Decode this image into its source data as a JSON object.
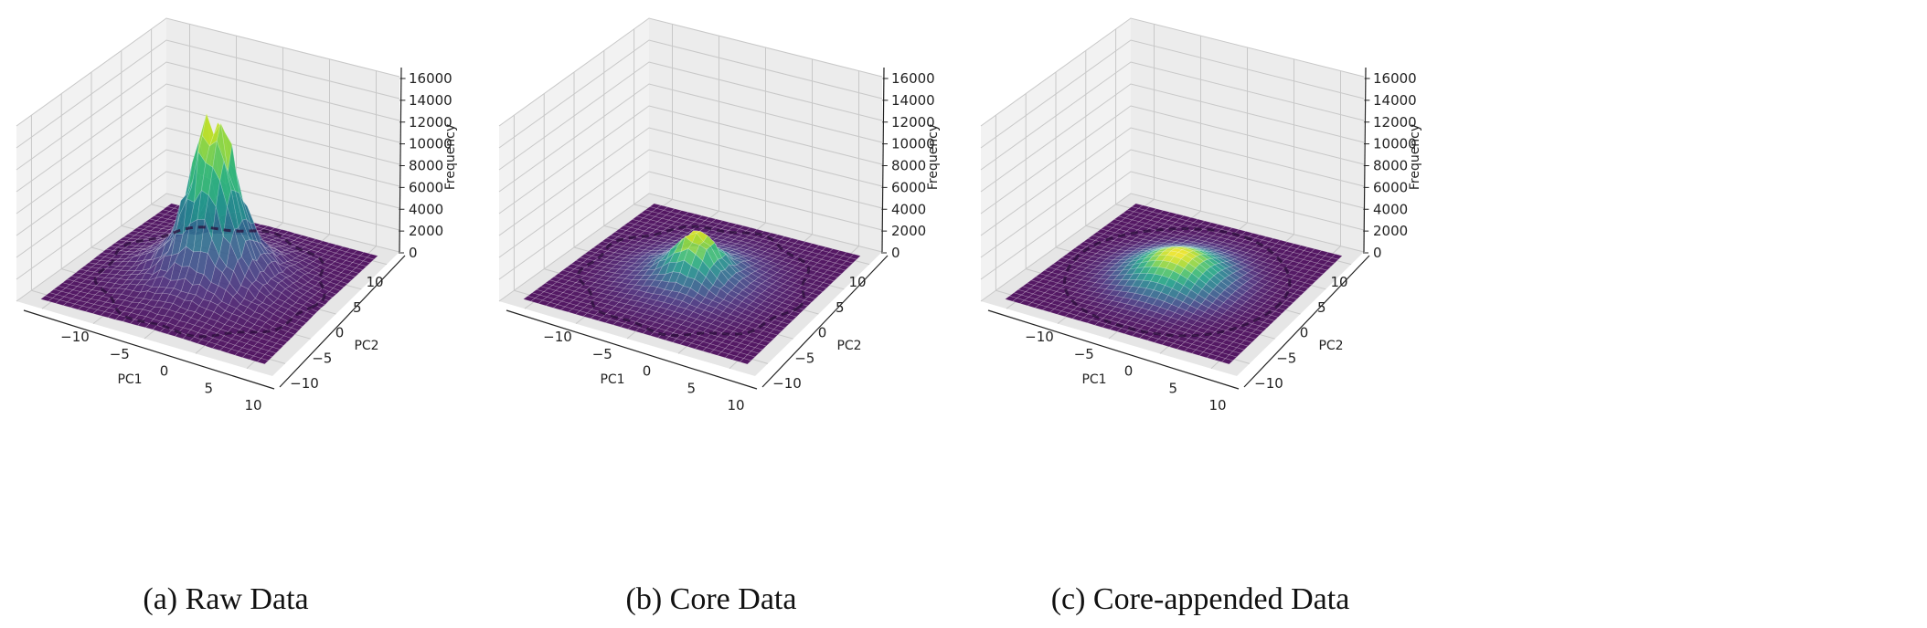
{
  "chart_data": [
    {
      "type": "surface3d",
      "caption": "(a) Raw Data",
      "xlabel": "PC1",
      "ylabel": "PC2",
      "zlabel": "Frequency",
      "xlim": [
        -12.5,
        12.5
      ],
      "ylim": [
        -12.5,
        12.5
      ],
      "zlim": [
        0,
        16000
      ],
      "xticks": [
        "−10",
        "−5",
        "0",
        "5",
        "10"
      ],
      "xtick_values": [
        -10,
        -5,
        0,
        5,
        10
      ],
      "yticks": [
        "−10",
        "−5",
        "0",
        "5",
        "10"
      ],
      "ytick_values": [
        -10,
        -5,
        0,
        5,
        10
      ],
      "zticks": [
        "0",
        "2000",
        "4000",
        "6000",
        "8000",
        "10000",
        "12000",
        "14000",
        "16000"
      ],
      "ztick_values": [
        0,
        2000,
        4000,
        6000,
        8000,
        10000,
        12000,
        14000,
        16000
      ],
      "colormap": "viridis",
      "surface_range": [
        -11,
        11
      ],
      "peak_frequency": 14500,
      "components": [
        {
          "amplitude": 11000,
          "sigma": 2.0
        },
        {
          "amplitude": 3500,
          "sigma": 4.5
        }
      ],
      "roughness": 0.14,
      "boundary_circle_radius": 10
    },
    {
      "type": "surface3d",
      "caption": "(b) Core Data",
      "xlabel": "PC1",
      "ylabel": "PC2",
      "zlabel": "Frequency",
      "xlim": [
        -12.5,
        12.5
      ],
      "ylim": [
        -12.5,
        12.5
      ],
      "zlim": [
        0,
        16000
      ],
      "xticks": [
        "−10",
        "−5",
        "0",
        "5",
        "10"
      ],
      "xtick_values": [
        -10,
        -5,
        0,
        5,
        10
      ],
      "yticks": [
        "−10",
        "−5",
        "0",
        "5",
        "10"
      ],
      "ytick_values": [
        -10,
        -5,
        0,
        5,
        10
      ],
      "zticks": [
        "0",
        "2000",
        "4000",
        "6000",
        "8000",
        "10000",
        "12000",
        "14000",
        "16000"
      ],
      "ztick_values": [
        0,
        2000,
        4000,
        6000,
        8000,
        10000,
        12000,
        14000,
        16000
      ],
      "colormap": "viridis",
      "surface_range": [
        -11,
        11
      ],
      "peak_frequency": 4300,
      "components": [
        {
          "amplitude": 2800,
          "sigma": 1.8
        },
        {
          "amplitude": 1500,
          "sigma": 4.0
        }
      ],
      "roughness": 0.1,
      "boundary_circle_radius": 10
    },
    {
      "type": "surface3d",
      "caption": "(c) Core-appended Data",
      "xlabel": "PC1",
      "ylabel": "PC2",
      "zlabel": "Frequency",
      "xlim": [
        -12.5,
        12.5
      ],
      "ylim": [
        -12.5,
        12.5
      ],
      "zlim": [
        0,
        16000
      ],
      "xticks": [
        "−10",
        "−5",
        "0",
        "5",
        "10"
      ],
      "xtick_values": [
        -10,
        -5,
        0,
        5,
        10
      ],
      "yticks": [
        "−10",
        "−5",
        "0",
        "5",
        "10"
      ],
      "ytick_values": [
        -10,
        -5,
        0,
        5,
        10
      ],
      "zticks": [
        "0",
        "2000",
        "4000",
        "6000",
        "8000",
        "10000",
        "12000",
        "14000",
        "16000"
      ],
      "ztick_values": [
        0,
        2000,
        4000,
        6000,
        8000,
        10000,
        12000,
        14000,
        16000
      ],
      "colormap": "viridis",
      "surface_range": [
        -11,
        11
      ],
      "peak_frequency": 2600,
      "components": [
        {
          "amplitude": 2600,
          "sigma": 3.2
        }
      ],
      "roughness": 0.0,
      "boundary_circle_radius": 10
    }
  ]
}
